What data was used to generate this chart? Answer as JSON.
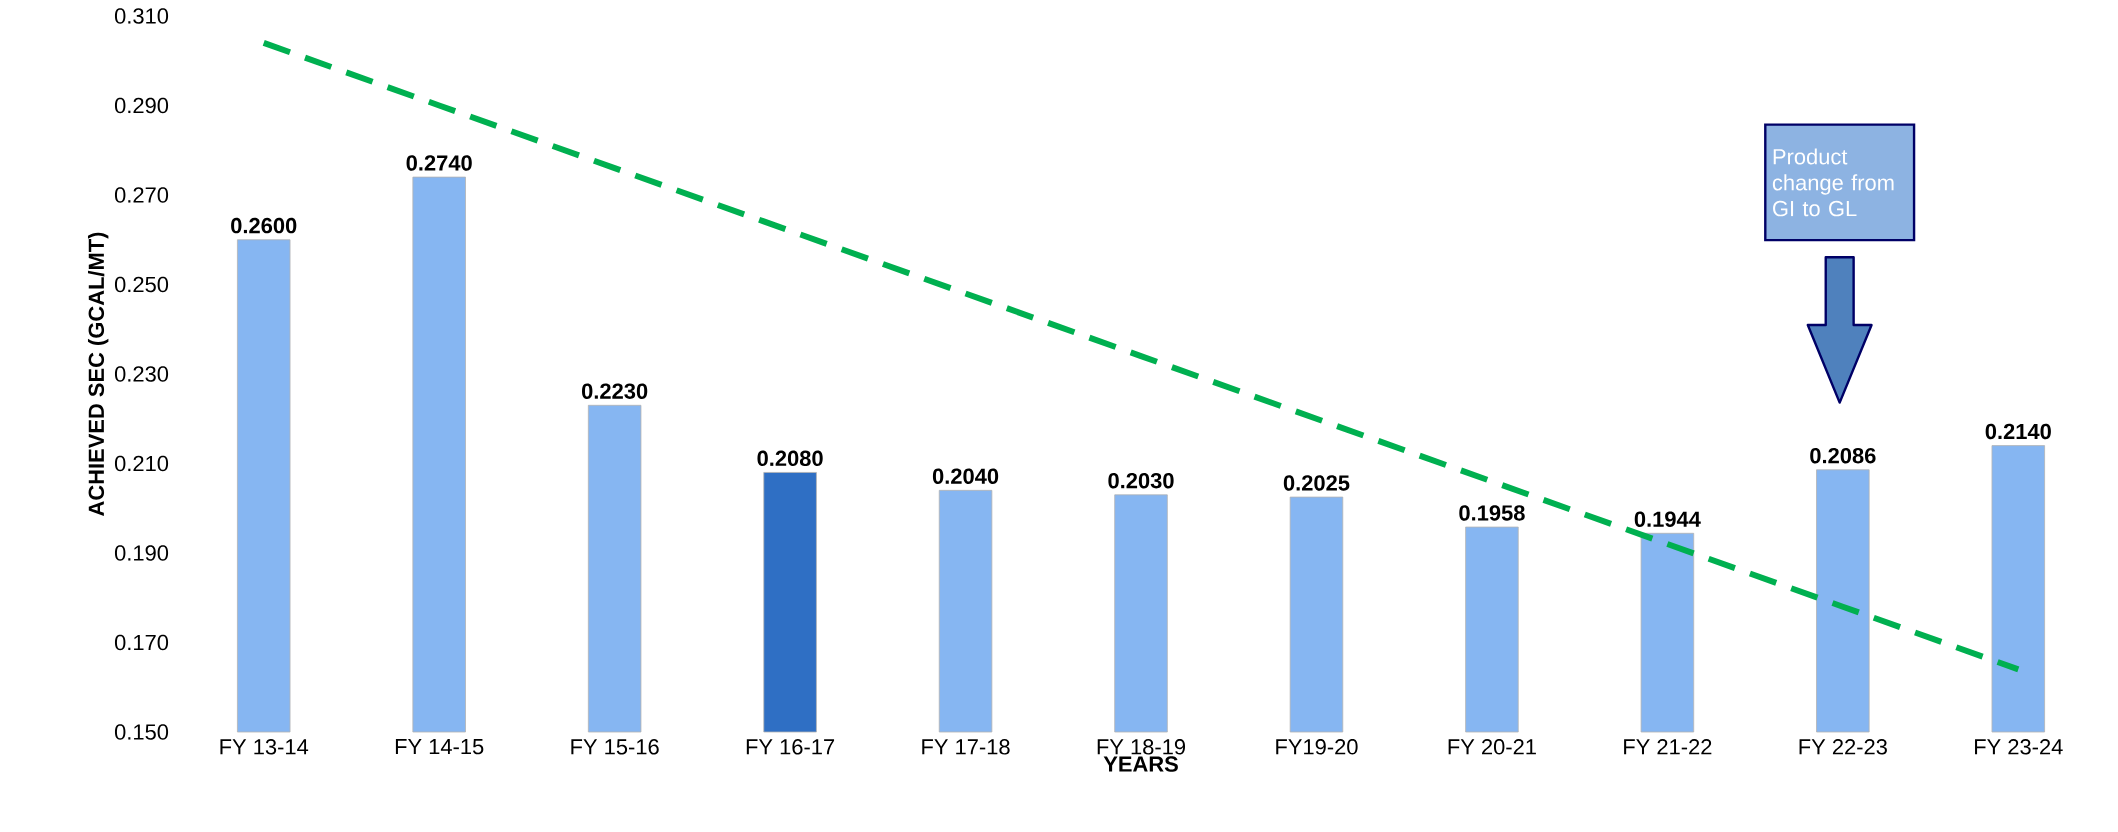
{
  "chart_data": {
    "type": "bar",
    "xlabel": "YEARS",
    "ylabel": "ACHIEVED SEC (GCAL/MT)",
    "categories": [
      "FY 13-14",
      "FY 14-15",
      "FY 15-16",
      "FY 16-17",
      "FY 17-18",
      "FY 18-19",
      "FY19-20",
      "FY 20-21",
      "FY 21-22",
      "FY 22-23",
      "FY 23-24"
    ],
    "series": [
      {
        "values": [
          0.26,
          0.274,
          0.223,
          0.208,
          0.204,
          0.203,
          0.2025,
          0.1958,
          0.1944,
          0.2086,
          0.214
        ],
        "value_labels": [
          "0.2600",
          "0.2740",
          "0.2230",
          "0.2080",
          "0.2040",
          "0.2030",
          "0.2025",
          "0.1958",
          "0.1944",
          "0.2086",
          "0.2140"
        ],
        "colors": [
          "#86b6f2",
          "#86b6f2",
          "#86b6f2",
          "#2f6fc4",
          "#86b6f2",
          "#86b6f2",
          "#86b6f2",
          "#86b6f2",
          "#86b6f2",
          "#86b6f2",
          "#86b6f2"
        ]
      },
      {
        "type": "line",
        "values": [
          0.304,
          0.29,
          0.276,
          0.262,
          0.248,
          0.234,
          0.22,
          0.206,
          0.192,
          0.178,
          0.164
        ],
        "color": "#00b050",
        "line_style": "dashed"
      }
    ],
    "ylim": [
      0.15,
      0.31
    ],
    "yticks": [
      {
        "value": 0.15,
        "label": "0.150"
      },
      {
        "value": 0.17,
        "label": "0.170"
      },
      {
        "value": 0.19,
        "label": "0.190"
      },
      {
        "value": 0.21,
        "label": "0.210"
      },
      {
        "value": 0.23,
        "label": "0.230"
      },
      {
        "value": 0.25,
        "label": "0.250"
      },
      {
        "value": 0.27,
        "label": "0.270"
      },
      {
        "value": 0.29,
        "label": "0.290"
      },
      {
        "value": 0.31,
        "label": "0.310"
      }
    ],
    "annotations": [
      "Product change from GI to GL"
    ]
  }
}
